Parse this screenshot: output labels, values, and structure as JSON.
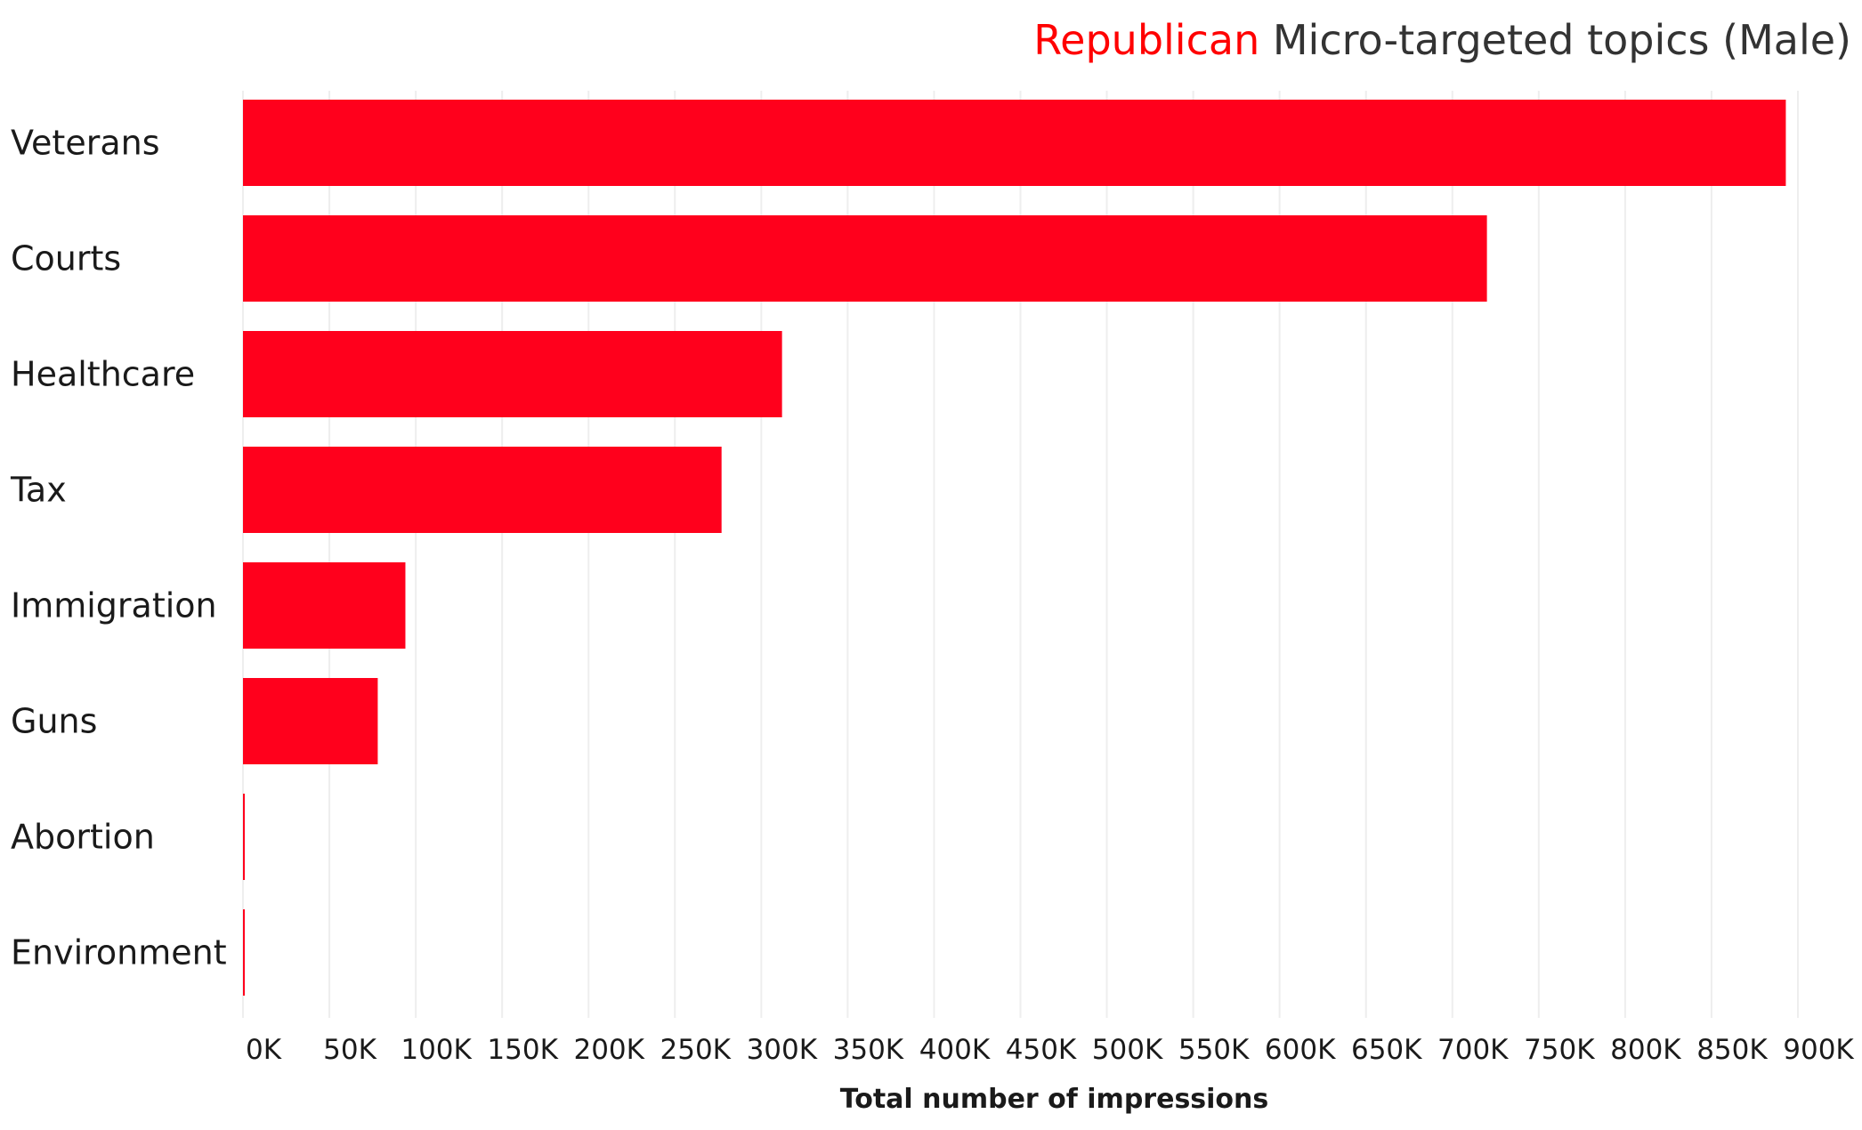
{
  "title": {
    "party": "Republican",
    "rest": " Micro-targeted topics (Male)"
  },
  "colors": {
    "bar": "#ff001c",
    "title_party": "#ff0000",
    "grid": "#eeeeee"
  },
  "chart_data": {
    "type": "bar",
    "orientation": "horizontal",
    "title": "Republican Micro-targeted topics (Male)",
    "categories": [
      "Veterans",
      "Courts",
      "Healthcare",
      "Tax",
      "Immigration",
      "Guns",
      "Abortion",
      "Environment"
    ],
    "values": [
      893000,
      720000,
      312000,
      277000,
      94000,
      78000,
      1000,
      1000
    ],
    "xlabel": "Total number of impressions",
    "ylabel": "",
    "xlim": [
      0,
      900000
    ],
    "x_ticks": [
      0,
      50000,
      100000,
      150000,
      200000,
      250000,
      300000,
      350000,
      400000,
      450000,
      500000,
      550000,
      600000,
      650000,
      700000,
      750000,
      800000,
      850000,
      900000
    ],
    "x_tick_labels": [
      "0K",
      "50K",
      "100K",
      "150K",
      "200K",
      "250K",
      "300K",
      "350K",
      "400K",
      "450K",
      "500K",
      "550K",
      "600K",
      "650K",
      "700K",
      "750K",
      "800K",
      "850K",
      "900K"
    ],
    "grid": "vertical",
    "legend": "none"
  }
}
